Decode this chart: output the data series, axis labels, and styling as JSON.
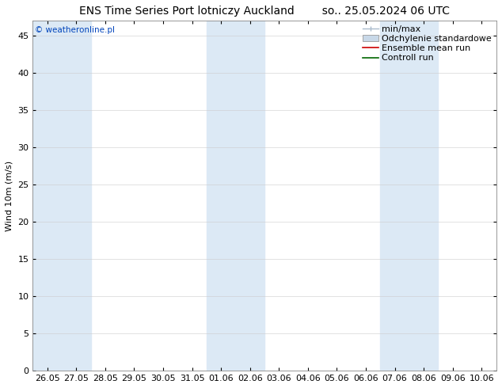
{
  "title_left": "ENS Time Series Port lotniczy Auckland",
  "title_right": "so.. 25.05.2024 06 UTC",
  "ylabel": "Wind 10m (m/s)",
  "watermark": "© weatheronline.pl",
  "ylim": [
    0,
    47
  ],
  "yticks": [
    0,
    5,
    10,
    15,
    20,
    25,
    30,
    35,
    40,
    45
  ],
  "x_labels": [
    "26.05",
    "27.05",
    "28.05",
    "29.05",
    "30.05",
    "31.05",
    "01.06",
    "02.06",
    "03.06",
    "04.06",
    "05.06",
    "06.06",
    "07.06",
    "08.06",
    "09.06",
    "10.06"
  ],
  "shade_positions": [
    0,
    1,
    6,
    7,
    12,
    13
  ],
  "bg_color": "#ffffff",
  "shade_color": "#dce9f5",
  "title_fontsize": 10,
  "axis_fontsize": 8,
  "legend_fontsize": 8,
  "minmax_color": "#c8dff0",
  "std_color": "#d0d8e0",
  "ens_color": "#cc0000",
  "ctrl_color": "#006600"
}
